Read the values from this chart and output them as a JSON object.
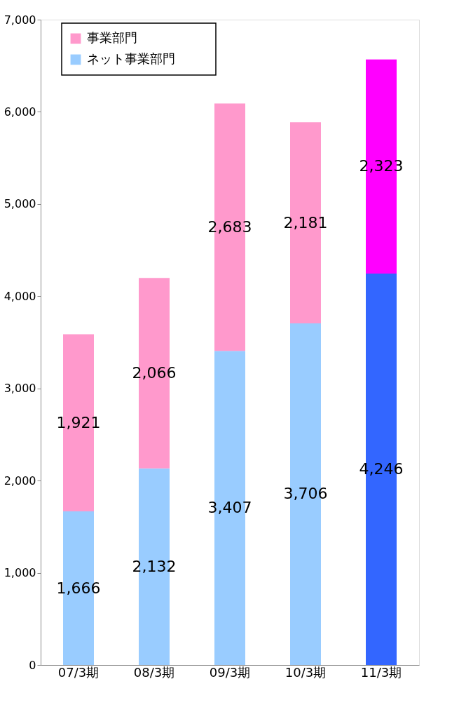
{
  "chart_data": {
    "type": "bar",
    "stacked": true,
    "categories": [
      "07/3期",
      "08/3期",
      "09/3期",
      "10/3期",
      "11/3期"
    ],
    "series": [
      {
        "name": "ネット事業部門",
        "color": "#99ccff",
        "colors": [
          "#99ccff",
          "#99ccff",
          "#99ccff",
          "#99ccff",
          "#3366ff"
        ],
        "values": [
          1666,
          2132,
          3407,
          3706,
          4246
        ],
        "value_labels": [
          "1,666",
          "2,132",
          "3,407",
          "3,706",
          "4,246"
        ]
      },
      {
        "name": "事業部門",
        "color": "#ff99cc",
        "colors": [
          "#ff99cc",
          "#ff99cc",
          "#ff99cc",
          "#ff99cc",
          "#ff00ff"
        ],
        "values": [
          1921,
          2066,
          2683,
          2181,
          2323
        ],
        "value_labels": [
          "1,921",
          "2,066",
          "2,683",
          "2,181",
          "2,323"
        ]
      }
    ],
    "ylim": [
      0,
      7000
    ],
    "yticks": [
      0,
      {
        "value": 1000,
        "label": "1,000"
      },
      {
        "value": 2000,
        "label": "2,000"
      },
      {
        "value": 3000,
        "label": "3,000"
      },
      {
        "value": 4000,
        "label": "4,000"
      },
      {
        "value": 5000,
        "label": "5,000"
      },
      {
        "value": 6000,
        "label": "6,000"
      },
      {
        "value": 7000,
        "label": "7,000"
      }
    ],
    "legend": "top left",
    "grid": false
  }
}
